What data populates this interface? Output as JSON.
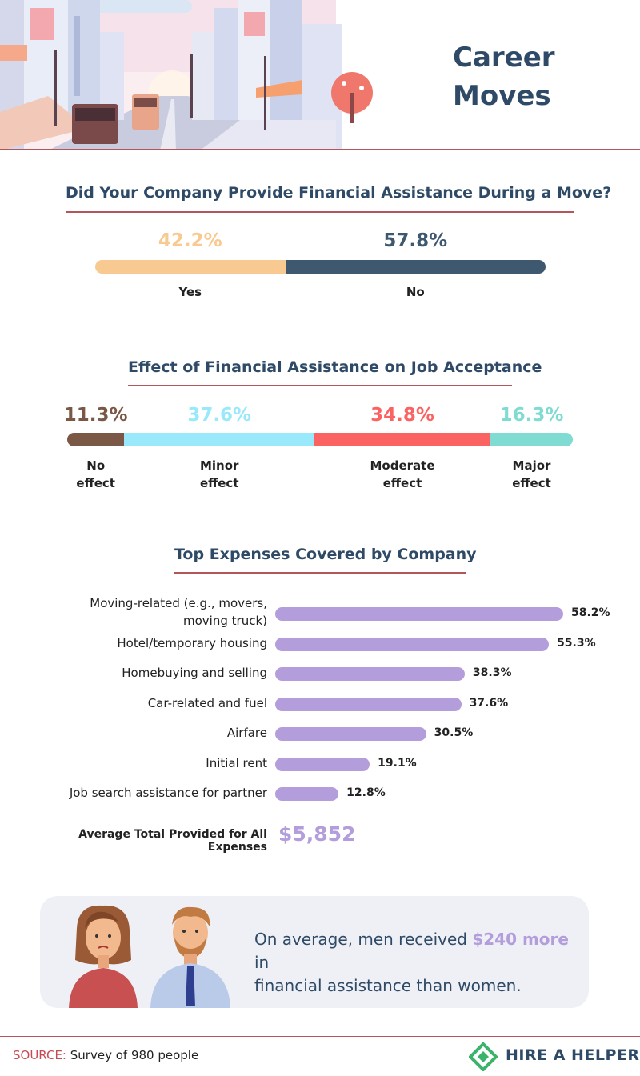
{
  "header": {
    "title_line1": "Career",
    "title_line2": "Moves"
  },
  "section1": {
    "title": "Did Your Company Provide Financial Assistance During a Move?"
  },
  "section2": {
    "title": "Effect of Financial Assistance on Job Acceptance"
  },
  "section3": {
    "title": "Top Expenses Covered by Company"
  },
  "callout": {
    "text_before": "On average, men received ",
    "highlight": "$240 more",
    "text_middle": " in",
    "text_after": "financial assistance than women."
  },
  "footer": {
    "source_label": "SOURCE:",
    "source_text": " Survey of 980 people",
    "logo_text": "HIRE A HELPER"
  },
  "colors": {
    "accent_line": "#b4555a",
    "title": "#2e4a66",
    "yes": "#f9c992",
    "no": "#3e5870",
    "no_effect": "#7b5746",
    "minor_effect": "#99e9fa",
    "moderate_effect": "#fb6363",
    "major_effect": "#80dbd3",
    "expense_bar": "#b39ddb"
  },
  "chart_data": [
    {
      "type": "bar",
      "orientation": "stacked-horizontal",
      "title": "Did Your Company Provide Financial Assistance During a Move?",
      "categories": [
        "Yes",
        "No"
      ],
      "values": [
        42.2,
        57.8
      ],
      "value_labels": [
        "42.2%",
        "57.8%"
      ],
      "colors": [
        "#f9c992",
        "#3e5870"
      ]
    },
    {
      "type": "bar",
      "orientation": "stacked-horizontal",
      "title": "Effect of Financial Assistance on Job Acceptance",
      "categories": [
        "No effect",
        "Minor effect",
        "Moderate effect",
        "Major effect"
      ],
      "values": [
        11.3,
        37.6,
        34.8,
        16.3
      ],
      "value_labels": [
        "11.3%",
        "37.6%",
        "34.8%",
        "16.3%"
      ],
      "colors": [
        "#7b5746",
        "#99e9fa",
        "#fb6363",
        "#80dbd3"
      ]
    },
    {
      "type": "bar",
      "orientation": "horizontal",
      "title": "Top Expenses Covered by Company",
      "categories": [
        "Moving-related (e.g., movers, moving truck)",
        "Hotel/temporary housing",
        "Homebuying and selling",
        "Car-related and fuel",
        "Airfare",
        "Initial rent",
        "Job search assistance for partner"
      ],
      "values": [
        58.2,
        55.3,
        38.3,
        37.6,
        30.5,
        19.1,
        12.8
      ],
      "value_labels": [
        "58.2%",
        "55.3%",
        "38.3%",
        "37.6%",
        "30.5%",
        "19.1%",
        "12.8%"
      ],
      "total_label": "Average Total Provided for All Expenses",
      "total_value": "$5,852"
    }
  ]
}
